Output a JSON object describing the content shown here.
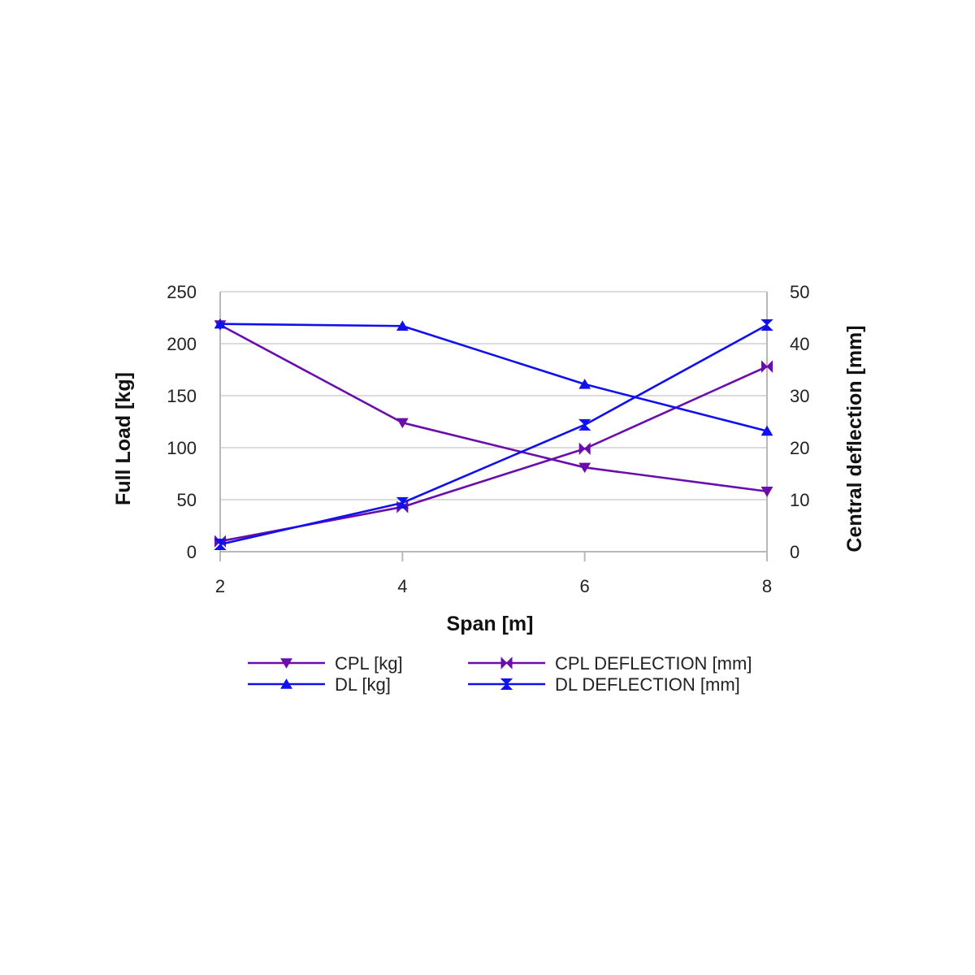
{
  "chart_data": {
    "type": "line",
    "title": "",
    "xlabel": "Span [m]",
    "ylabel": "Full Load [kg]",
    "y2label": "Central deflection [mm]",
    "x": [
      2,
      4,
      6,
      8
    ],
    "xlim": [
      2,
      8
    ],
    "ylim": [
      0,
      250
    ],
    "y2lim": [
      0,
      50
    ],
    "x_ticks": [
      "2",
      "4",
      "6",
      "8"
    ],
    "y_ticks": [
      "0",
      "50",
      "100",
      "150",
      "200",
      "250"
    ],
    "y2_ticks": [
      "0",
      "10",
      "20",
      "30",
      "40",
      "50"
    ],
    "grid": true,
    "legend_position": "bottom",
    "series": [
      {
        "name": "CPL [kg]",
        "axis": "left",
        "values": [
          218,
          124,
          81,
          58
        ],
        "color": "#6a0dad",
        "marker": "triangle-down"
      },
      {
        "name": "CPL DEFLECTION [mm]",
        "axis": "right",
        "values": [
          2,
          8.6,
          19.8,
          35.6
        ],
        "color": "#6a0dad",
        "marker": "bowtie"
      },
      {
        "name": "DL [kg]",
        "axis": "left",
        "values": [
          219,
          217,
          161,
          116
        ],
        "color": "#1010ee",
        "marker": "triangle-up"
      },
      {
        "name": "DL DEFLECTION [mm]",
        "axis": "right",
        "values": [
          1.4,
          9.4,
          24.4,
          43.6
        ],
        "color": "#1010ee",
        "marker": "hourglass"
      }
    ]
  }
}
